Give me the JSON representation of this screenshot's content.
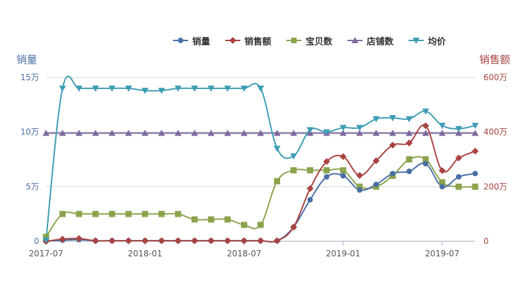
{
  "chart_data": {
    "type": "line",
    "x": [
      "2017-07",
      "2017-08",
      "2017-09",
      "2017-10",
      "2017-11",
      "2017-12",
      "2018-01",
      "2018-02",
      "2018-03",
      "2018-04",
      "2018-05",
      "2018-06",
      "2018-07",
      "2018-08",
      "2018-09",
      "2018-10",
      "2018-11",
      "2018-12",
      "2019-01",
      "2019-02",
      "2019-03",
      "2019-04",
      "2019-05",
      "2019-06",
      "2019-07",
      "2019-08",
      "2019-09"
    ],
    "x_tick_labels": [
      "2017-07",
      "2018-01",
      "2018-07",
      "2019-01",
      "2019-07"
    ],
    "yleft": {
      "label": "销量",
      "ticks": [
        "0",
        "5万",
        "10万",
        "15万"
      ],
      "ylim": [
        0,
        150000
      ]
    },
    "yright": {
      "label": "销售额",
      "ticks": [
        "0",
        "200万",
        "400万",
        "600万"
      ],
      "ylim": [
        0,
        6000000
      ]
    },
    "grid": true,
    "legend_position": "top",
    "series": [
      {
        "name": "销量",
        "axis": "left",
        "color": "#4a6fa5",
        "marker": "circle",
        "values": [
          0,
          1000,
          1500,
          500,
          500,
          500,
          500,
          500,
          500,
          500,
          500,
          500,
          500,
          500,
          500,
          13000,
          38000,
          59000,
          60000,
          47000,
          52000,
          62000,
          64000,
          71000,
          50000,
          59000,
          62000
        ]
      },
      {
        "name": "销售额",
        "axis": "right",
        "color": "#a94442",
        "marker": "diamond",
        "values": [
          0,
          80000,
          100000,
          20000,
          20000,
          20000,
          20000,
          20000,
          20000,
          20000,
          20000,
          20000,
          20000,
          20000,
          20000,
          520000,
          1930000,
          2920000,
          3100000,
          2410000,
          2950000,
          3520000,
          3600000,
          4230000,
          2590000,
          3050000,
          3300000
        ]
      },
      {
        "name": "宝贝数",
        "axis": "left",
        "color": "#8ba44c",
        "marker": "square",
        "values": [
          4000,
          25000,
          25000,
          25000,
          25000,
          25000,
          25000,
          25000,
          25000,
          20000,
          20000,
          20000,
          15000,
          15000,
          55000,
          65000,
          65000,
          65000,
          65000,
          50000,
          50000,
          60000,
          75000,
          75000,
          54000,
          50000,
          50000
        ]
      },
      {
        "name": "店铺数",
        "axis": "left",
        "color": "#7e6a9e",
        "marker": "triangle-up",
        "values": [
          99000,
          99000,
          99000,
          99000,
          99000,
          99000,
          99000,
          99000,
          99000,
          99000,
          99000,
          99000,
          99000,
          99000,
          99000,
          99000,
          99000,
          99000,
          99000,
          99000,
          99000,
          99000,
          99000,
          99000,
          99000,
          99000,
          99000
        ]
      },
      {
        "name": "均价",
        "axis": "left",
        "color": "#3e9db5",
        "marker": "triangle-down",
        "values": [
          1000,
          140000,
          140000,
          140000,
          140000,
          140000,
          138000,
          138000,
          140000,
          140000,
          140000,
          140000,
          140000,
          140000,
          85000,
          78000,
          102000,
          100000,
          104000,
          104000,
          112000,
          113000,
          112000,
          119000,
          106000,
          103000,
          106000
        ]
      }
    ]
  }
}
